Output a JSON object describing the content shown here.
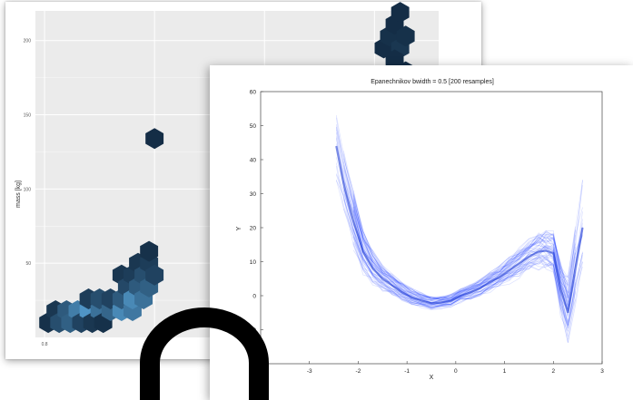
{
  "chart_data": [
    {
      "type": "heatmap",
      "subtype": "hexbin",
      "title": "",
      "xlabel": "",
      "ylabel": "mass [kg]",
      "x_ticks": [
        "0.8"
      ],
      "y_ticks": [
        "50",
        "100",
        "150",
        "200"
      ],
      "ylim": [
        0,
        220
      ],
      "grid": true,
      "colors": {
        "panel_bg": "#ebebeb",
        "grid": "#ffffff",
        "low": "#56a0d3",
        "high": "#132b43"
      },
      "cells": [
        {
          "x": 0.82,
          "y": 10,
          "v": 0.95
        },
        {
          "x": 0.86,
          "y": 18,
          "v": 0.9
        },
        {
          "x": 0.88,
          "y": 10,
          "v": 0.7
        },
        {
          "x": 0.92,
          "y": 18,
          "v": 0.6
        },
        {
          "x": 0.94,
          "y": 10,
          "v": 0.55
        },
        {
          "x": 0.98,
          "y": 18,
          "v": 0.3
        },
        {
          "x": 1.0,
          "y": 10,
          "v": 0.8
        },
        {
          "x": 1.04,
          "y": 18,
          "v": 0.1
        },
        {
          "x": 1.04,
          "y": 26,
          "v": 0.85
        },
        {
          "x": 1.06,
          "y": 10,
          "v": 0.9
        },
        {
          "x": 1.1,
          "y": 18,
          "v": 0.4
        },
        {
          "x": 1.1,
          "y": 26,
          "v": 0.7
        },
        {
          "x": 1.12,
          "y": 10,
          "v": 0.95
        },
        {
          "x": 1.16,
          "y": 18,
          "v": 0.5
        },
        {
          "x": 1.16,
          "y": 26,
          "v": 0.8
        },
        {
          "x": 1.22,
          "y": 18,
          "v": 0.2
        },
        {
          "x": 1.22,
          "y": 26,
          "v": 0.6
        },
        {
          "x": 1.22,
          "y": 42,
          "v": 0.9
        },
        {
          "x": 1.25,
          "y": 34,
          "v": 0.75
        },
        {
          "x": 1.28,
          "y": 18,
          "v": 0.35
        },
        {
          "x": 1.28,
          "y": 26,
          "v": 0.2
        },
        {
          "x": 1.28,
          "y": 42,
          "v": 0.85
        },
        {
          "x": 1.31,
          "y": 34,
          "v": 0.6
        },
        {
          "x": 1.31,
          "y": 50,
          "v": 0.9
        },
        {
          "x": 1.34,
          "y": 26,
          "v": 0.4
        },
        {
          "x": 1.34,
          "y": 42,
          "v": 0.7
        },
        {
          "x": 1.37,
          "y": 34,
          "v": 0.55
        },
        {
          "x": 1.37,
          "y": 50,
          "v": 0.85
        },
        {
          "x": 1.37,
          "y": 58,
          "v": 0.95
        },
        {
          "x": 1.4,
          "y": 42,
          "v": 0.8
        },
        {
          "x": 1.4,
          "y": 134,
          "v": 0.98
        },
        {
          "x": 2.65,
          "y": 195,
          "v": 0.98
        },
        {
          "x": 2.68,
          "y": 203,
          "v": 0.95
        },
        {
          "x": 2.71,
          "y": 211,
          "v": 0.98
        },
        {
          "x": 2.74,
          "y": 195,
          "v": 0.9
        },
        {
          "x": 2.74,
          "y": 219,
          "v": 0.98
        },
        {
          "x": 2.77,
          "y": 203,
          "v": 0.95
        },
        {
          "x": 2.77,
          "y": 179,
          "v": 0.98
        },
        {
          "x": 2.71,
          "y": 187,
          "v": 0.98
        },
        {
          "x": 2.68,
          "y": 171,
          "v": 0.98
        }
      ]
    },
    {
      "type": "line",
      "title": "Epanechnikov bwidth = 0.5 [200 resamples]",
      "xlabel": "X",
      "ylabel": "Y",
      "xlim": [
        -4,
        3
      ],
      "ylim": [
        -20,
        60
      ],
      "x_ticks": [
        "-4",
        "-3",
        "-2",
        "-1",
        "0",
        "1",
        "2",
        "3"
      ],
      "y_ticks": [
        "-10",
        "0",
        "10",
        "20",
        "30",
        "40",
        "50",
        "60"
      ],
      "grid": false,
      "line_color": "#1f3fff",
      "resamples_drawn": 60,
      "mean_curve": {
        "x": [
          -2.45,
          -2.3,
          -2.1,
          -1.9,
          -1.7,
          -1.5,
          -1.3,
          -1.1,
          -0.9,
          -0.7,
          -0.5,
          -0.3,
          -0.1,
          0.1,
          0.3,
          0.5,
          0.7,
          0.9,
          1.1,
          1.3,
          1.5,
          1.7,
          1.85,
          2.0,
          2.15,
          2.3,
          2.45,
          2.6
        ],
        "y": [
          44,
          33,
          22,
          13,
          8,
          5,
          3,
          1,
          -0.5,
          -1.5,
          -2.2,
          -2,
          -1.5,
          0,
          1,
          2.2,
          4,
          5.5,
          7.5,
          9.5,
          11.5,
          13,
          13.2,
          12.5,
          2,
          -5,
          8,
          20
        ]
      },
      "spread": [
        9,
        8,
        7,
        5,
        4,
        3,
        2.6,
        2.2,
        2,
        1.8,
        1.6,
        1.5,
        1.5,
        1.6,
        1.8,
        2,
        2.3,
        2.6,
        3,
        3.4,
        3.8,
        4.2,
        4.6,
        5,
        6,
        8,
        10,
        12
      ]
    }
  ]
}
